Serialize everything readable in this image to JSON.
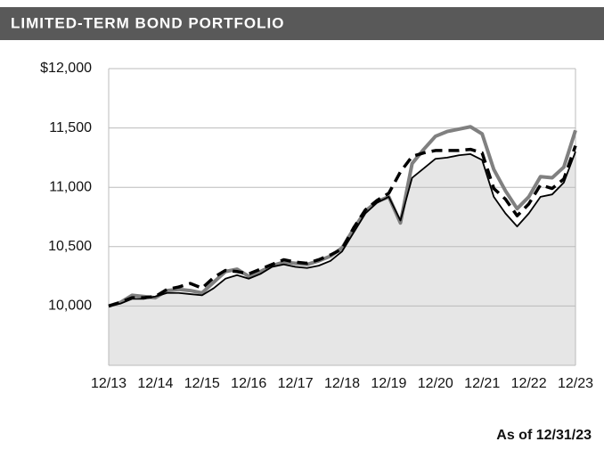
{
  "header": {
    "title": "LIMITED-TERM BOND PORTFOLIO"
  },
  "chart_data": {
    "type": "line",
    "categories": [
      "12/13",
      null,
      null,
      null,
      "12/14",
      null,
      null,
      null,
      "12/15",
      null,
      null,
      null,
      "12/16",
      null,
      null,
      null,
      "12/17",
      null,
      null,
      null,
      "12/18",
      null,
      null,
      null,
      "12/19",
      null,
      null,
      null,
      "12/20",
      null,
      null,
      null,
      "12/21",
      null,
      null,
      null,
      "12/22",
      null,
      null,
      null,
      "12/23"
    ],
    "series": [
      {
        "color": "#808080",
        "values": [
          10000,
          10030,
          10090,
          10080,
          10070,
          10130,
          10140,
          10130,
          10110,
          10200,
          10290,
          10310,
          10250,
          10290,
          10340,
          10370,
          10360,
          10350,
          10380,
          10420,
          10490,
          10650,
          10800,
          10880,
          10920,
          10700,
          11200,
          11320,
          11430,
          11470,
          11490,
          11510,
          11450,
          11150,
          10970,
          10820,
          10920,
          11090,
          11080,
          11170,
          11480
        ]
      },
      {
        "color": "#000000",
        "values": [
          10000,
          10030,
          10070,
          10070,
          10080,
          10140,
          10160,
          10190,
          10150,
          10240,
          10300,
          10290,
          10270,
          10310,
          10350,
          10390,
          10370,
          10360,
          10390,
          10430,
          10480,
          10660,
          10810,
          10890,
          10950,
          11130,
          11260,
          11290,
          11310,
          11310,
          11310,
          11320,
          11290,
          10990,
          10900,
          10760,
          10860,
          11020,
          10990,
          11070,
          11350
        ]
      },
      {
        "color": "#000000",
        "values": [
          10000,
          10020,
          10060,
          10060,
          10080,
          10110,
          10110,
          10100,
          10090,
          10150,
          10230,
          10260,
          10230,
          10270,
          10330,
          10350,
          10330,
          10320,
          10340,
          10380,
          10460,
          10620,
          10780,
          10870,
          10920,
          10720,
          11080,
          11160,
          11240,
          11250,
          11270,
          11280,
          11230,
          10920,
          10780,
          10670,
          10780,
          10920,
          10940,
          11040,
          11300
        ]
      }
    ],
    "ylim": [
      9500,
      12000
    ],
    "yticks": [
      {
        "value": 10000,
        "label": "10,000"
      },
      {
        "value": 10500,
        "label": "10,500"
      },
      {
        "value": 11000,
        "label": "11,000"
      },
      {
        "value": 11500,
        "label": "11,500"
      },
      {
        "value": 12000,
        "label": "$12,000"
      }
    ],
    "grid": true,
    "area_color": "#e6e6e6",
    "note": "As of 12/31/23"
  }
}
